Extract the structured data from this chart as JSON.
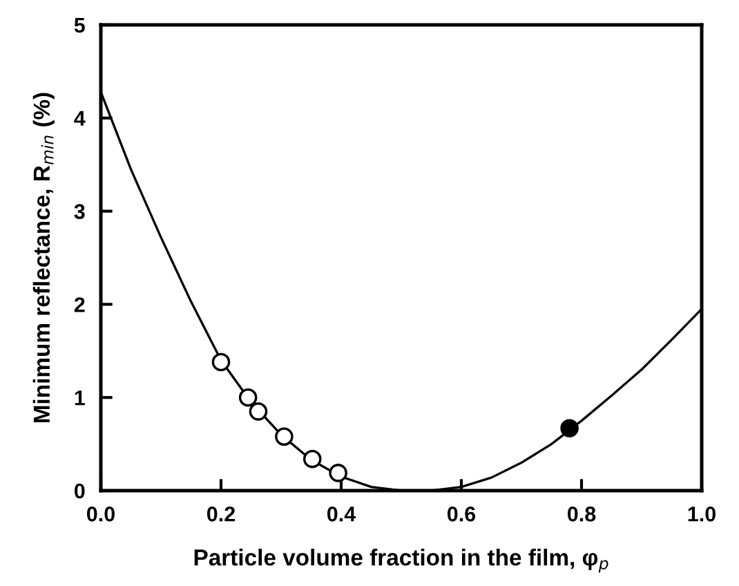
{
  "chart_data": {
    "type": "scatter",
    "xlabel": "Particle volume fraction in the film, φ$_{p}$",
    "ylabel": "Minimum reflectance, R$_{min}$ (%)",
    "xlim": [
      0,
      1
    ],
    "ylim": [
      0,
      5
    ],
    "xticks": [
      {
        "value": 0,
        "label": "0.0"
      },
      {
        "value": 0.2,
        "label": "0.2"
      },
      {
        "value": 0.4,
        "label": "0.4"
      },
      {
        "value": 0.6,
        "label": "0.6"
      },
      {
        "value": 0.8,
        "label": "0.8"
      },
      {
        "value": 1,
        "label": "1.0"
      }
    ],
    "yticks": [
      0,
      1,
      2,
      3,
      4,
      5
    ],
    "grid": false,
    "series": [
      {
        "type": "line",
        "color": "#000000",
        "marker": "none",
        "line_style": "solid",
        "x": [
          0,
          0.05,
          0.1,
          0.15,
          0.2,
          0.25,
          0.3,
          0.35,
          0.4,
          0.45,
          0.5,
          0.55,
          0.6,
          0.65,
          0.7,
          0.75,
          0.8,
          0.85,
          0.9,
          0.95,
          1.0
        ],
        "values": [
          4.28,
          3.45,
          2.72,
          2.03,
          1.4,
          0.95,
          0.6,
          0.33,
          0.15,
          0.04,
          0.0,
          0.0,
          0.04,
          0.14,
          0.3,
          0.5,
          0.75,
          1.02,
          1.3,
          1.62,
          1.95
        ]
      },
      {
        "color": "#ffffff",
        "marker": "circle",
        "x": [
          0.2,
          0.245,
          0.262,
          0.305,
          0.352,
          0.395
        ],
        "values": [
          1.38,
          1.0,
          0.85,
          0.58,
          0.34,
          0.19
        ]
      },
      {
        "color": "#000000",
        "marker": "circle",
        "x": [
          0.78
        ],
        "values": [
          0.67
        ]
      }
    ]
  }
}
